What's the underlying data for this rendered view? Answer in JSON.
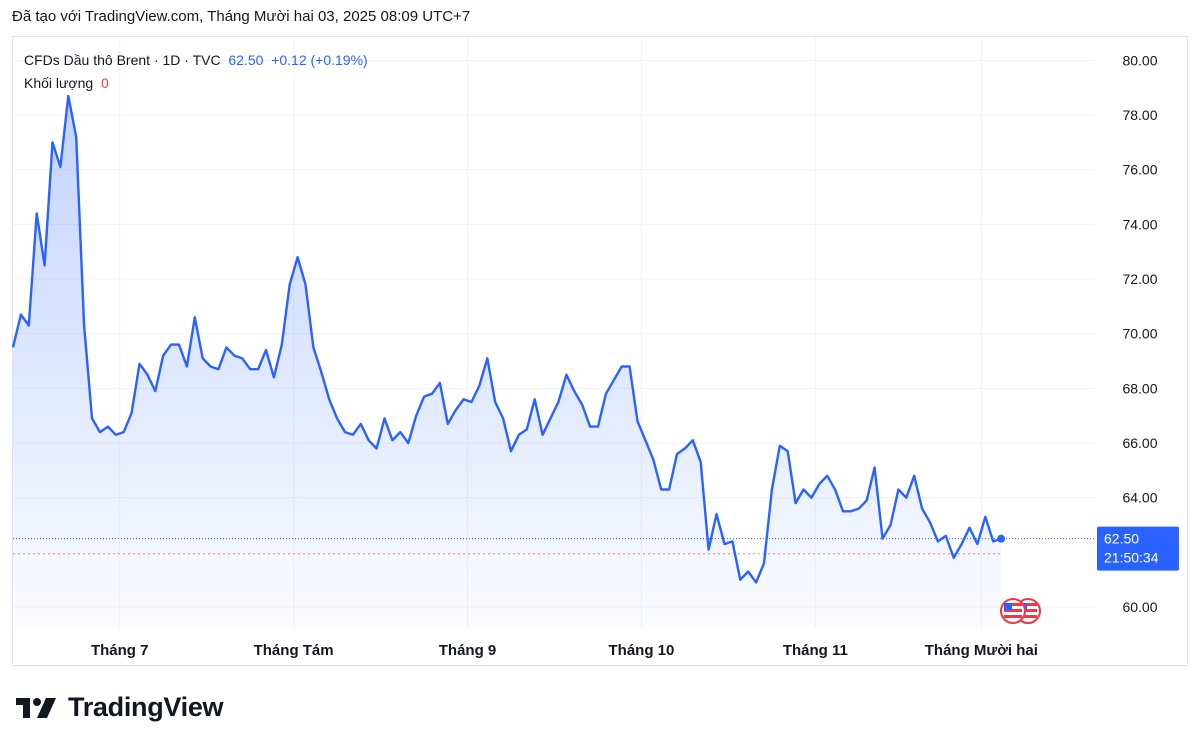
{
  "caption": "Đã tạo với TradingView.com, Tháng Mười hai 03, 2025 08:09 UTC+7",
  "legend": {
    "symbol": "CFDs Dầu thô Brent · 1D · TVC",
    "price": "62.50",
    "change": "+0.12 (+0.19%)",
    "volume_label": "Khối lượng",
    "volume_value": "0"
  },
  "price_badge": {
    "price": "62.50",
    "countdown": "21:50:34"
  },
  "brand": "TradingView",
  "colors": {
    "line": "#2962ff",
    "badge": "#2962ff",
    "grid": "#f0f3fa",
    "prev_close": "#f23645"
  },
  "chart_data": {
    "type": "area",
    "title": "",
    "xlabel": "",
    "ylabel": "",
    "ylim": [
      59.2,
      80.5
    ],
    "y_ticks": [
      "80.00",
      "78.00",
      "76.00",
      "74.00",
      "72.00",
      "70.00",
      "68.00",
      "66.00",
      "64.00",
      "62.50",
      "60.00"
    ],
    "x_ticks": [
      "Tháng 7",
      "Tháng Tám",
      "Tháng 9",
      "Tháng 10",
      "Tháng 11",
      "Tháng Mười hai"
    ],
    "x_tick_index": [
      13.5,
      35.5,
      57.5,
      79.5,
      101.5,
      122.5
    ],
    "grid": true,
    "last_price": 62.5,
    "prev_close": 61.95,
    "series": [
      {
        "values": [
          69.5,
          70.7,
          70.3,
          74.4,
          72.5,
          77.0,
          76.1,
          78.7,
          77.2,
          70.3,
          66.9,
          66.4,
          66.6,
          66.3,
          66.4,
          67.1,
          68.9,
          68.5,
          67.9,
          69.2,
          69.6,
          69.6,
          68.8,
          70.6,
          69.1,
          68.8,
          68.7,
          69.5,
          69.2,
          69.1,
          68.7,
          68.7,
          69.4,
          68.4,
          69.6,
          71.8,
          72.8,
          71.8,
          69.5,
          68.6,
          67.6,
          66.9,
          66.4,
          66.3,
          66.7,
          66.1,
          65.8,
          66.9,
          66.1,
          66.4,
          66.0,
          67.0,
          67.7,
          67.8,
          68.2,
          66.7,
          67.2,
          67.6,
          67.5,
          68.1,
          69.1,
          67.5,
          66.9,
          65.7,
          66.3,
          66.5,
          67.6,
          66.3,
          66.9,
          67.5,
          68.5,
          67.9,
          67.4,
          66.6,
          66.6,
          67.8,
          68.3,
          68.8,
          68.8,
          66.8,
          66.1,
          65.4,
          64.3,
          64.3,
          65.6,
          65.8,
          66.1,
          65.3,
          62.1,
          63.4,
          62.3,
          62.4,
          61.0,
          61.3,
          60.9,
          61.6,
          64.3,
          65.9,
          65.7,
          63.8,
          64.3,
          64.0,
          64.5,
          64.8,
          64.3,
          63.5,
          63.5,
          63.6,
          63.9,
          65.1,
          62.5,
          63.0,
          64.3,
          64.0,
          64.8,
          63.6,
          63.1,
          62.4,
          62.6,
          61.8,
          62.3,
          62.9,
          62.3,
          63.3,
          62.4,
          62.5
        ]
      }
    ]
  }
}
